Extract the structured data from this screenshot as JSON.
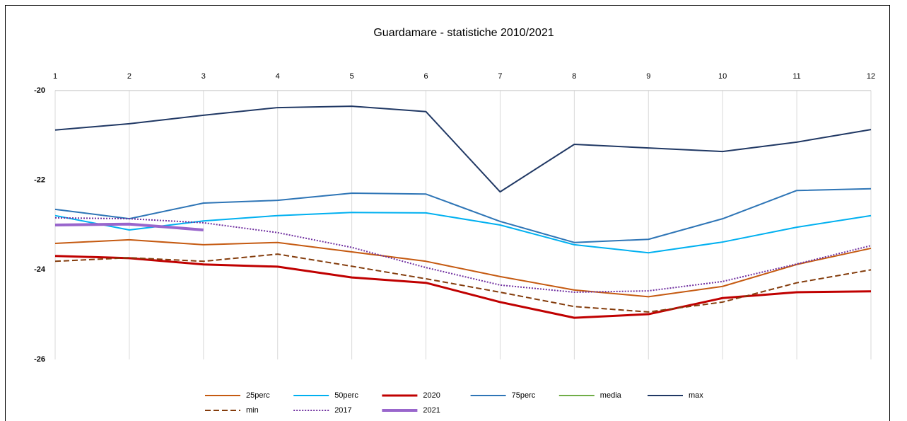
{
  "chart_data": {
    "type": "line",
    "title": "Guardamare  - statistiche 2010/2021",
    "x": [
      1,
      2,
      3,
      4,
      5,
      6,
      7,
      8,
      9,
      10,
      11,
      12
    ],
    "xlim": [
      1,
      12
    ],
    "xticks": [
      1,
      2,
      3,
      4,
      5,
      6,
      7,
      8,
      9,
      10,
      11,
      12
    ],
    "ylim": [
      -26,
      -20
    ],
    "yticks": [
      -26,
      -24,
      -22,
      -20
    ],
    "grid": "vertical",
    "series": [
      {
        "name": "25perc",
        "color": "#c55a11",
        "line_style": "solid",
        "values": [
          -23.41,
          -23.33,
          -23.44,
          -23.39,
          -23.6,
          -23.81,
          -24.15,
          -24.45,
          -24.6,
          -24.37,
          -23.88,
          -23.52
        ]
      },
      {
        "name": "50perc",
        "color": "#00b0f0",
        "line_style": "solid",
        "values": [
          -22.79,
          -23.11,
          -22.91,
          -22.79,
          -22.72,
          -22.73,
          -23.0,
          -23.44,
          -23.62,
          -23.38,
          -23.05,
          -22.79
        ]
      },
      {
        "name": "2020",
        "color": "#c00000",
        "line_style": "thick",
        "values": [
          -23.69,
          -23.74,
          -23.88,
          -23.93,
          -24.17,
          -24.29,
          -24.72,
          -25.07,
          -24.99,
          -24.63,
          -24.5,
          -24.48
        ]
      },
      {
        "name": "75perc",
        "color": "#2e75b6",
        "line_style": "solid",
        "values": [
          -22.65,
          -22.86,
          -22.51,
          -22.45,
          -22.29,
          -22.31,
          -22.92,
          -23.39,
          -23.32,
          -22.86,
          -22.23,
          -22.19
        ]
      },
      {
        "name": "media",
        "color": "#70ad47",
        "line_style": "solid",
        "values": [
          null,
          null,
          null,
          null,
          null,
          null,
          null,
          null,
          null,
          null,
          null,
          null
        ]
      },
      {
        "name": "max",
        "color": "#203864",
        "line_style": "solid",
        "values": [
          -20.88,
          -20.74,
          -20.55,
          -20.38,
          -20.35,
          -20.47,
          -22.26,
          -21.2,
          -21.28,
          -21.36,
          -21.15,
          -20.87
        ]
      },
      {
        "name": "min",
        "color": "#843c0c",
        "line_style": "dashed",
        "values": [
          -23.81,
          -23.73,
          -23.81,
          -23.65,
          -23.92,
          -24.2,
          -24.5,
          -24.82,
          -24.94,
          -24.72,
          -24.29,
          -24.0
        ]
      },
      {
        "name": "2017",
        "color": "#7030a0",
        "line_style": "dotted",
        "values": [
          -22.84,
          -22.86,
          -22.95,
          -23.17,
          -23.5,
          -23.95,
          -24.34,
          -24.5,
          -24.47,
          -24.26,
          -23.87,
          -23.46
        ]
      },
      {
        "name": "2021",
        "color": "#9966cc",
        "line_style": "heavy",
        "values": [
          -23.0,
          -22.98,
          -23.11,
          null,
          null,
          null,
          null,
          null,
          null,
          null,
          null,
          null
        ]
      }
    ]
  }
}
